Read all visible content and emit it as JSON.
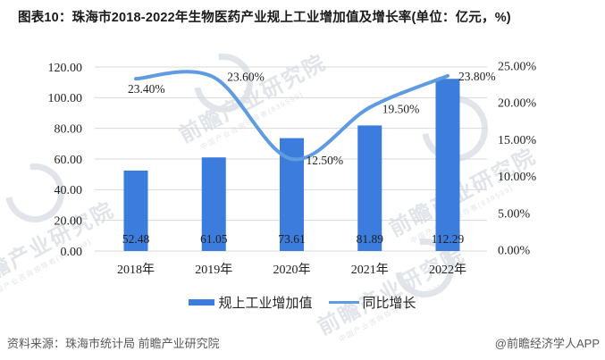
{
  "title": "图表10：珠海市2018-2022年生物医药产业规上工业增加值及增长率(单位：亿元，%)",
  "chart_data": {
    "type": "combo_bar_line",
    "categories": [
      "2018年",
      "2019年",
      "2020年",
      "2021年",
      "2022年"
    ],
    "series": [
      {
        "name": "规上工业增加值",
        "type": "bar",
        "axis": "left",
        "values": [
          52.48,
          61.05,
          73.61,
          81.89,
          112.29
        ],
        "data_labels": [
          "52.48",
          "61.05",
          "73.61",
          "81.89",
          "112.29"
        ]
      },
      {
        "name": "同比增长",
        "type": "line",
        "axis": "right",
        "values": [
          23.4,
          23.6,
          12.5,
          19.5,
          23.8
        ],
        "data_labels": [
          "23.40%",
          "23.60%",
          "12.50%",
          "19.50%",
          "23.80%"
        ]
      }
    ],
    "left_axis": {
      "min": 0,
      "max": 120,
      "step": 20,
      "labels": [
        "0.00",
        "20.00",
        "40.00",
        "60.00",
        "80.00",
        "100.00",
        "120.00"
      ]
    },
    "right_axis": {
      "min": 0,
      "max": 25,
      "step": 5,
      "labels": [
        "0.00%",
        "5.00%",
        "10.00%",
        "15.00%",
        "20.00%",
        "25.00%"
      ]
    },
    "grid": true,
    "legend_position": "bottom"
  },
  "legend": {
    "items": [
      {
        "label": "规上工业增加值",
        "swatch": "bar"
      },
      {
        "label": "同比增长",
        "swatch": "line"
      }
    ]
  },
  "footer": {
    "source": "资料来源：珠海市统计局 前瞻产业研究院",
    "credit": "@前瞻经济学人APP"
  },
  "watermark": {
    "text": "前瞻产业研究院",
    "subtext": "中国产业咨询领导者(839599)"
  },
  "colors": {
    "bar": "#3C7CDC",
    "line": "#5E9BE0",
    "grid": "#D9D9D9",
    "axis_text": "#1F1F1F",
    "footer_text": "#595959",
    "watermark": "#C9CFD8"
  }
}
